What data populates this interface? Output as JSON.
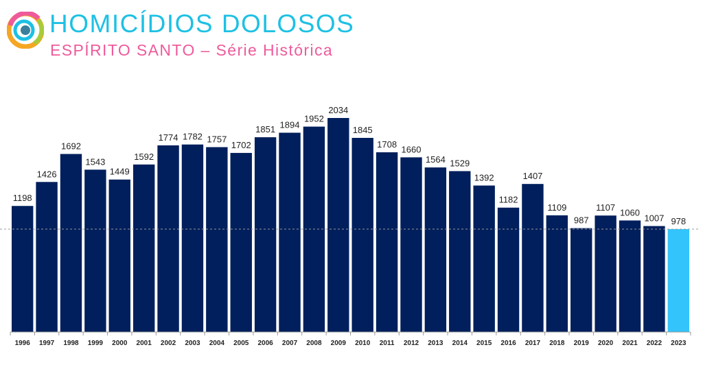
{
  "header": {
    "title": "HOMICÍDIOS DOLOSOS",
    "subtitle": "ESPÍRITO SANTO – Série Histórica",
    "logo_icon": "circular-eye-logo"
  },
  "chart_data": {
    "type": "bar",
    "title": "HOMICÍDIOS DOLOSOS",
    "subtitle": "ESPÍRITO SANTO – Série Histórica",
    "xlabel": "",
    "ylabel": "",
    "ylim": [
      0,
      2100
    ],
    "grid": false,
    "categories": [
      "1996",
      "1997",
      "1998",
      "1999",
      "2000",
      "2001",
      "2002",
      "2003",
      "2004",
      "2005",
      "2006",
      "2007",
      "2008",
      "2009",
      "2010",
      "2011",
      "2012",
      "2013",
      "2014",
      "2015",
      "2016",
      "2017",
      "2018",
      "2019",
      "2020",
      "2021",
      "2022",
      "2023"
    ],
    "values": [
      1198,
      1426,
      1692,
      1543,
      1449,
      1592,
      1774,
      1782,
      1757,
      1702,
      1851,
      1894,
      1952,
      2034,
      1845,
      1708,
      1660,
      1564,
      1529,
      1392,
      1182,
      1407,
      1109,
      987,
      1107,
      1060,
      1007,
      978
    ],
    "reference_line": 978,
    "colors": {
      "default": "#001f5c",
      "highlight": "#33c4fb",
      "highlight_category": "2023"
    }
  }
}
